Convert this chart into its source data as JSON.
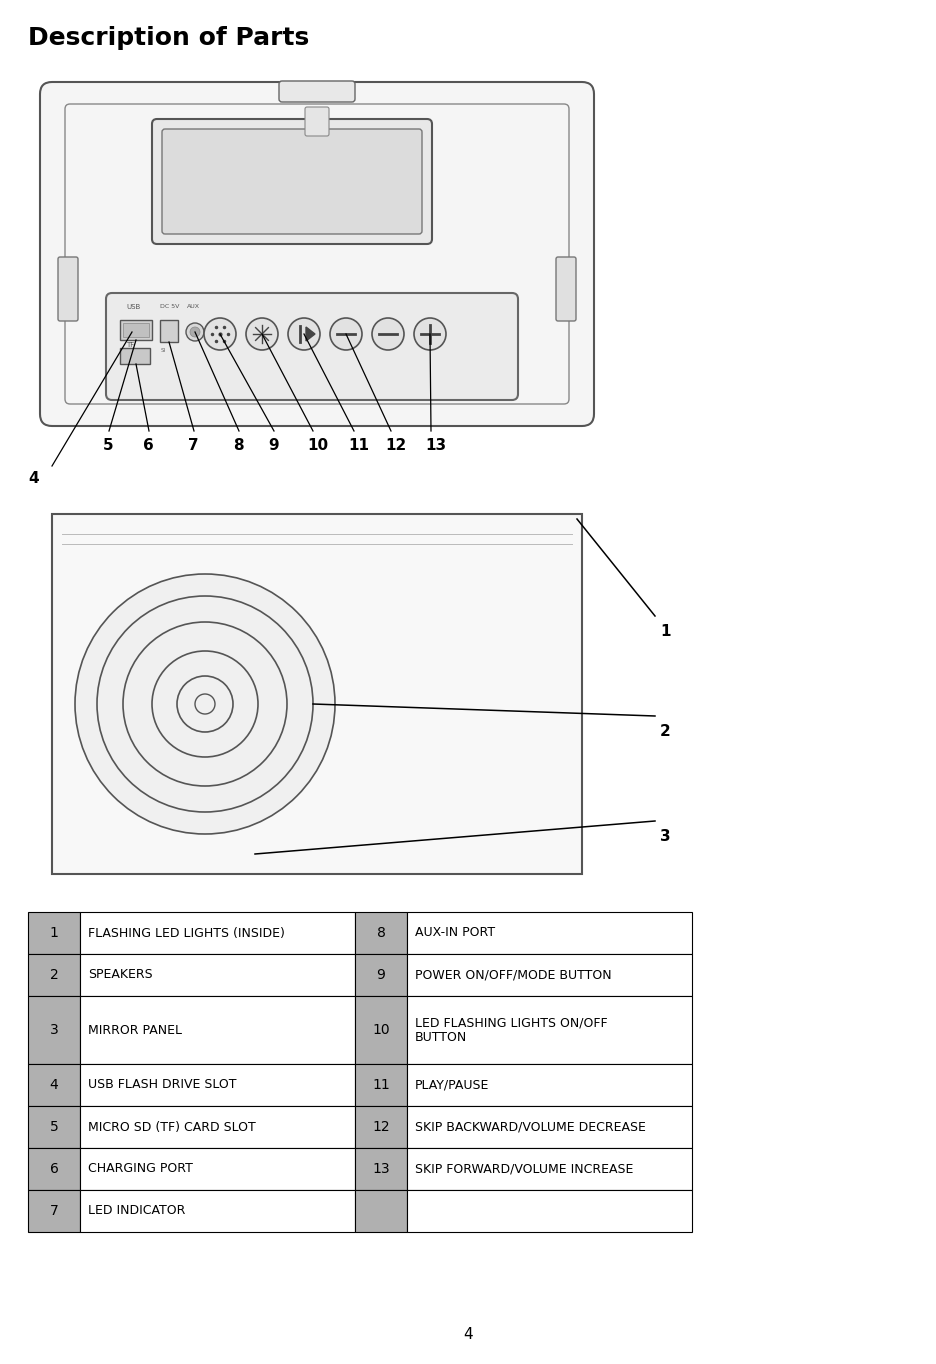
{
  "title": "Description of Parts",
  "bg_color": "#ffffff",
  "table_data": [
    {
      "num": "1",
      "desc": "FLASHING LED LIGHTS (INSIDE)",
      "num2": "8",
      "desc2": "AUX-IN PORT"
    },
    {
      "num": "2",
      "desc": "SPEAKERS",
      "num2": "9",
      "desc2": "POWER ON/OFF/MODE BUTTON"
    },
    {
      "num": "3",
      "desc": "MIRROR PANEL",
      "num2": "10",
      "desc2": "LED FLASHING LIGHTS ON/OFF\nBUTTON"
    },
    {
      "num": "4",
      "desc": "USB FLASH DRIVE SLOT",
      "num2": "11",
      "desc2": "PLAY/PAUSE"
    },
    {
      "num": "5",
      "desc": "MICRO SD (TF) CARD SLOT",
      "num2": "12",
      "desc2": "SKIP BACKWARD/VOLUME DECREASE"
    },
    {
      "num": "6",
      "desc": "CHARGING PORT",
      "num2": "13",
      "desc2": "SKIP FORWARD/VOLUME INCREASE"
    },
    {
      "num": "7",
      "desc": "LED INDICATOR",
      "num2": "",
      "desc2": ""
    }
  ],
  "page_num": "4",
  "num_col_bg": "#b0b0b0",
  "text_color": "#000000",
  "table_border_color": "#000000",
  "title_fontsize": 18,
  "body_fontsize": 9,
  "num_fontsize": 10
}
